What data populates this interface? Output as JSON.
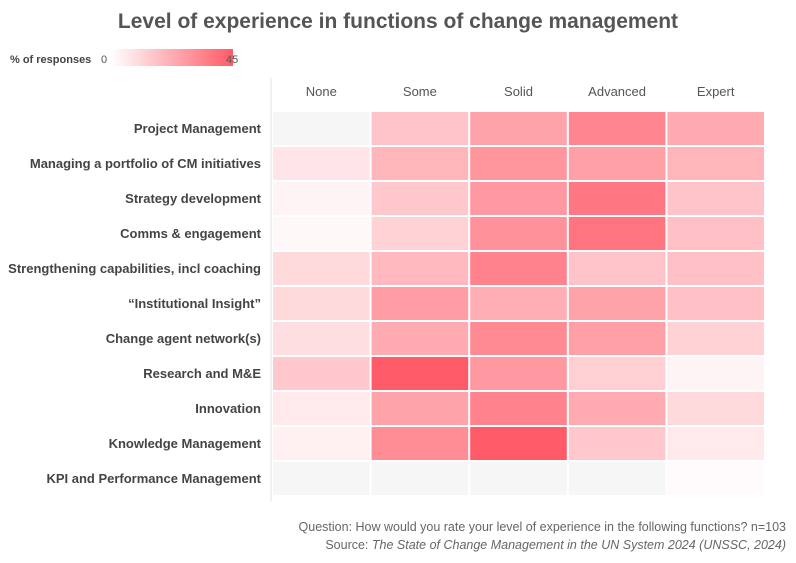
{
  "chart_data": {
    "type": "heatmap",
    "title": "Level of experience in functions of change management",
    "legend": {
      "label": "% of responses",
      "min": 0,
      "max": 45,
      "placement": "top-left"
    },
    "columns": [
      "None",
      "Some",
      "Solid",
      "Advanced",
      "Expert"
    ],
    "rows": [
      "Project Management",
      "Managing a portfolio of CM initiatives",
      "Strategy development",
      "Comms & engagement",
      "Strengthening capabilities, incl coaching",
      "“Institutional Insight”",
      "Change agent network(s)",
      "Research and M&E",
      "Innovation",
      "Knowledge Management",
      "KPI and Performance Management"
    ],
    "values": [
      [
        0,
        16,
        25,
        33,
        23
      ],
      [
        7,
        20,
        29,
        26,
        20
      ],
      [
        3,
        15,
        28,
        37,
        16
      ],
      [
        2,
        12,
        30,
        38,
        17
      ],
      [
        10,
        19,
        34,
        16,
        17
      ],
      [
        10,
        27,
        22,
        25,
        17
      ],
      [
        9,
        23,
        32,
        26,
        12
      ],
      [
        15,
        45,
        28,
        13,
        3
      ],
      [
        6,
        25,
        34,
        23,
        10
      ],
      [
        4,
        31,
        45,
        15,
        6
      ],
      [
        0,
        0,
        0,
        0,
        1
      ]
    ],
    "color_scale": {
      "low": "#ffffff",
      "high": "#ff5a67",
      "empty": "#f6f6f6"
    },
    "grid": false
  },
  "footer": {
    "question": "Question: How would you rate your level of experience in the following functions? n=103",
    "source_prefix": "Source: ",
    "source_title": "The State of Change Management in the UN System 2024 (UNSSC, 2024)"
  }
}
